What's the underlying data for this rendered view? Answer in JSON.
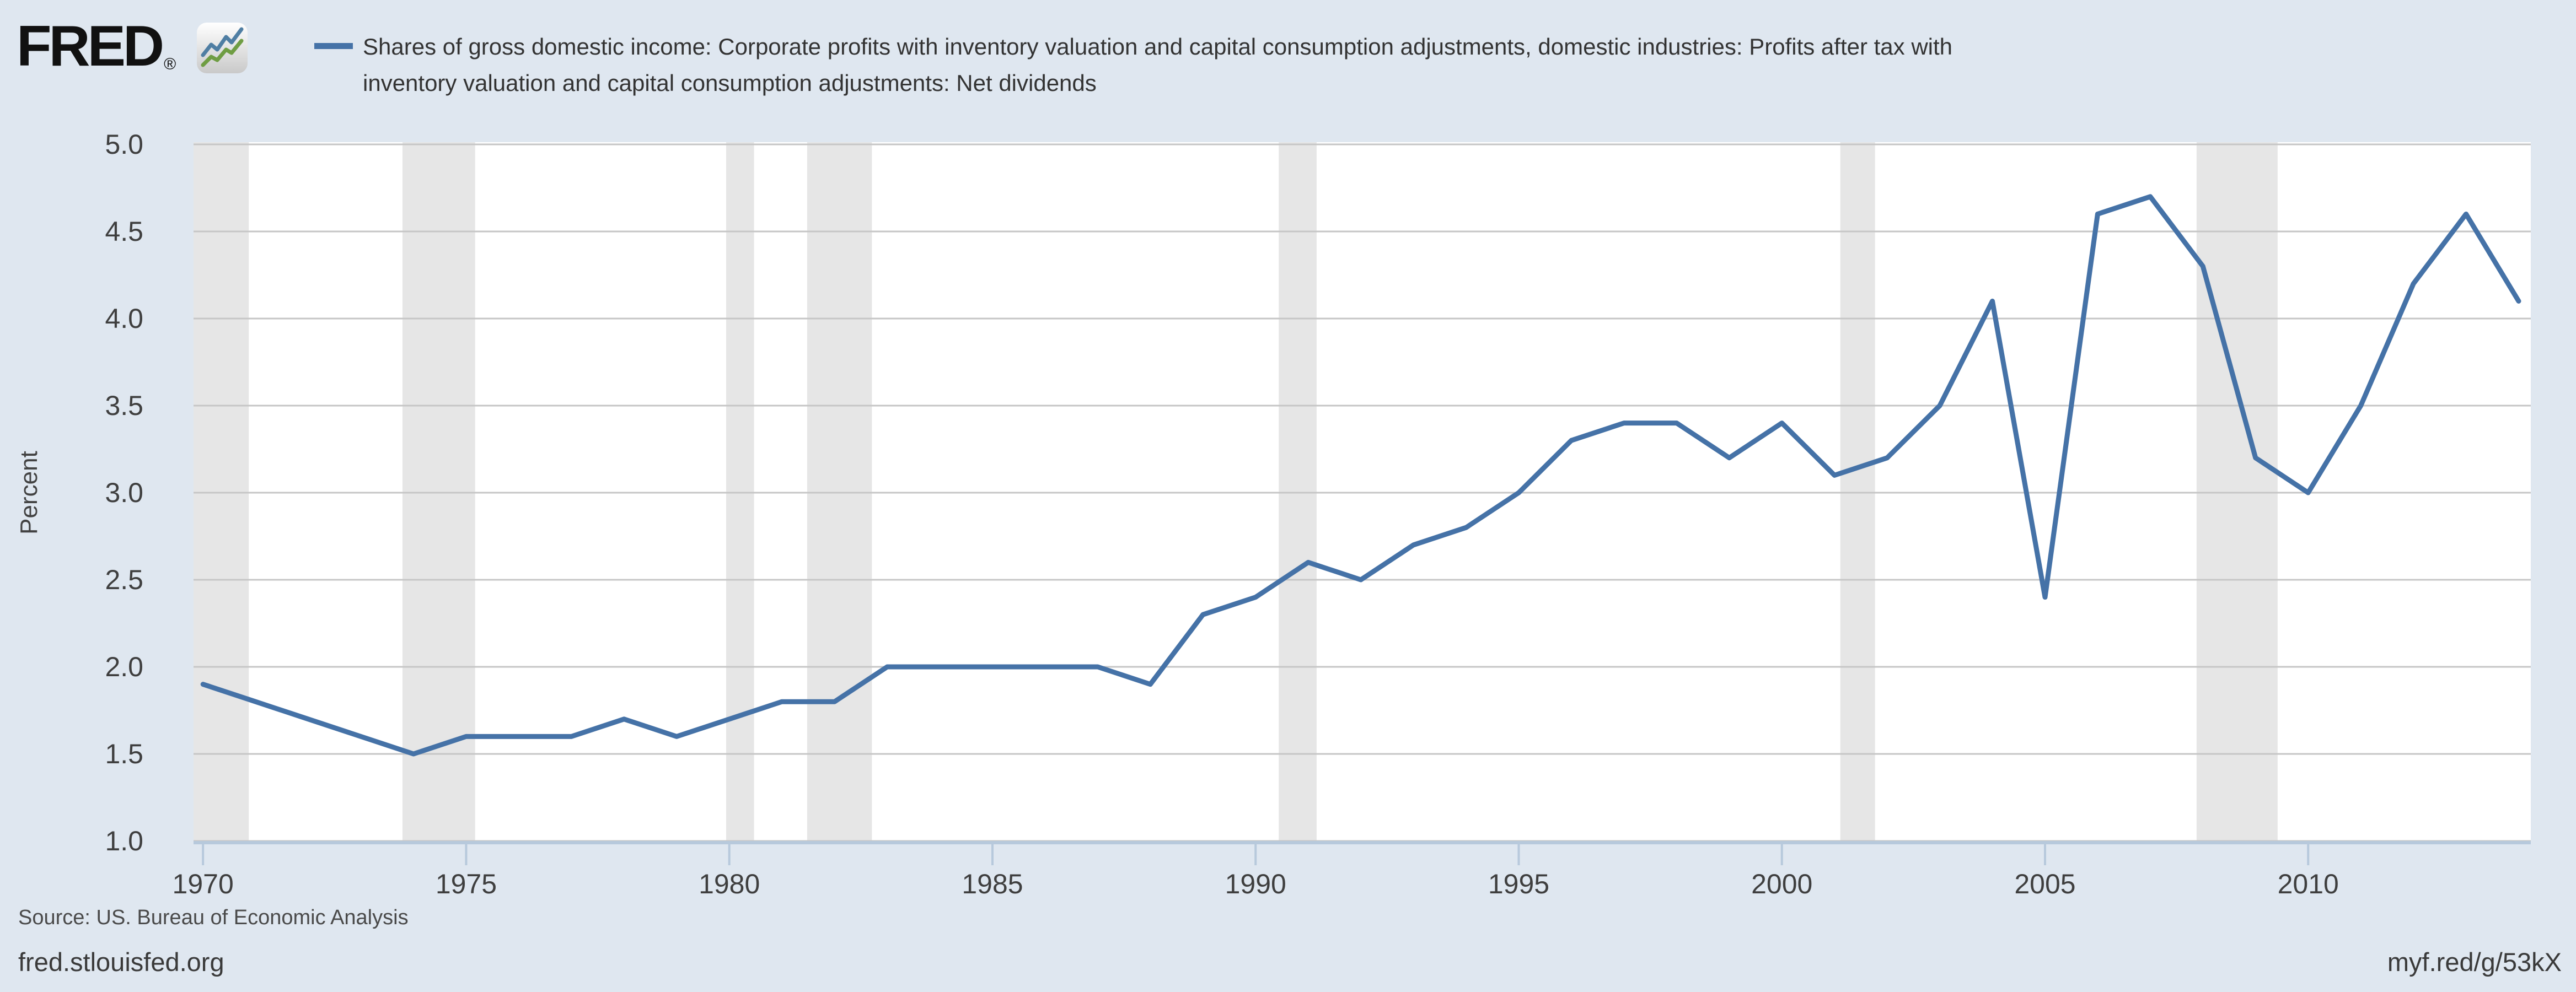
{
  "header": {
    "logo_text": "FRED",
    "registered_mark": "®",
    "legend": {
      "marker_color": "#4572a7",
      "lines": [
        "Shares of gross domestic income: Corporate profits with inventory valuation and capital consumption adjustments, domestic industries: Profits after tax with",
        "inventory valuation and capital consumption adjustments: Net dividends"
      ]
    }
  },
  "footer": {
    "source": "Source: US. Bureau of Economic Analysis",
    "site_url": "fred.stlouisfed.org",
    "short_url": "myf.red/g/53kX"
  },
  "chart_data": {
    "type": "line",
    "title": "",
    "xlabel": "",
    "ylabel": "Percent",
    "grid": true,
    "legend_position": "top",
    "x_range": [
      1969.82,
      2014.23
    ],
    "y_range": [
      1.0,
      5.0
    ],
    "y_ticks": [
      "5.0",
      "4.5",
      "4.0",
      "3.5",
      "3.0",
      "2.5",
      "2.0",
      "1.5",
      "1.0"
    ],
    "x_ticks": [
      1970,
      1975,
      1980,
      1985,
      1990,
      1995,
      2000,
      2005,
      2010
    ],
    "series": [
      {
        "name": "Shares of gross domestic income: Corporate profits with inventory valuation and capital consumption adjustments, domestic industries: Profits after tax with inventory valuation and capital consumption adjustments: Net dividends",
        "color": "#4572a7",
        "x": [
          1970,
          1971,
          1972,
          1973,
          1974,
          1975,
          1976,
          1977,
          1978,
          1979,
          1980,
          1981,
          1982,
          1983,
          1984,
          1985,
          1986,
          1987,
          1988,
          1989,
          1990,
          1991,
          1992,
          1993,
          1994,
          1995,
          1996,
          1997,
          1998,
          1999,
          2000,
          2001,
          2002,
          2003,
          2004,
          2005,
          2006,
          2007,
          2008,
          2009,
          2010,
          2011,
          2012,
          2013,
          2014
        ],
        "values": [
          1.9,
          1.8,
          1.7,
          1.6,
          1.5,
          1.6,
          1.6,
          1.6,
          1.7,
          1.6,
          1.7,
          1.8,
          1.8,
          2.0,
          2.0,
          2.0,
          2.0,
          2.0,
          1.9,
          2.3,
          2.4,
          2.6,
          2.5,
          2.7,
          2.8,
          3.0,
          3.3,
          3.4,
          3.4,
          3.2,
          3.4,
          3.1,
          3.2,
          3.5,
          4.1,
          2.4,
          4.6,
          4.7,
          4.3,
          3.2,
          3.0,
          3.5,
          4.2,
          4.6,
          4.1
        ]
      }
    ],
    "recession_bands": [
      [
        1969.82,
        1970.87
      ],
      [
        1973.79,
        1975.17
      ],
      [
        1979.94,
        1980.47
      ],
      [
        1981.48,
        1982.71
      ],
      [
        1990.44,
        1991.16
      ],
      [
        2001.11,
        2001.77
      ],
      [
        2007.88,
        2009.42
      ]
    ],
    "colors": {
      "background": "#dfe7f0",
      "plot_background": "#ffffff",
      "gridline": "#c6c6c6",
      "recession_band": "#e6e6e6",
      "axis_line": "#b7c9dc",
      "tick": "#b7c9dc",
      "series_line": "#4572a7",
      "logo_icon_blue": "#4f7ea3",
      "logo_icon_green": "#6f9d43"
    }
  }
}
